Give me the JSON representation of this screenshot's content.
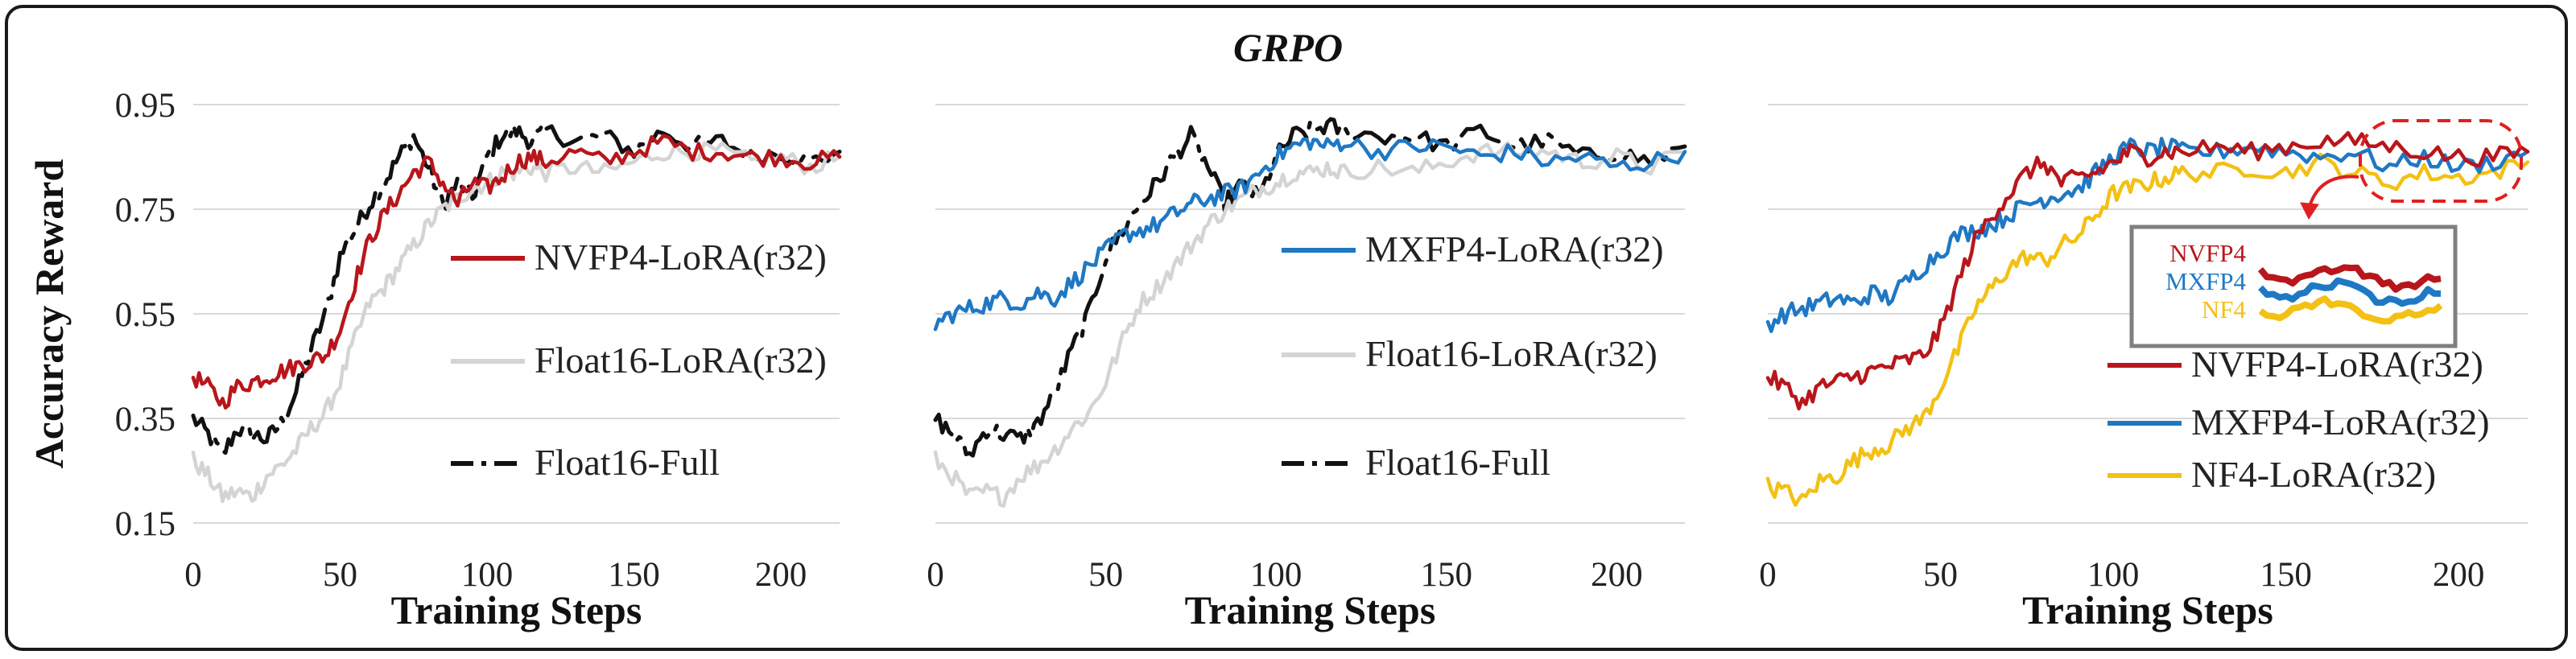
{
  "title": "GRPO",
  "colors": {
    "nvfp4": "#b8161c",
    "mxfp4": "#1f78c4",
    "float16_lora": "#d4d4d4",
    "float16_full": "#111111",
    "nf4": "#f3c014",
    "inset_border": "#7f7f7f",
    "callout": "#e02020"
  },
  "chart_data": [
    {
      "type": "line",
      "xlabel": "Training Steps",
      "ylabel": "Accuracy Reward",
      "xlim": [
        0,
        220
      ],
      "ylim": [
        0.15,
        0.95
      ],
      "xticks": [
        "0",
        "50",
        "100",
        "150",
        "200"
      ],
      "yticks": [
        "0.15",
        "0.35",
        "0.55",
        "0.75",
        "0.95"
      ],
      "grid": true,
      "legend": [
        {
          "label": "NVFP4-LoRA(r32)",
          "key": "nvfp4",
          "style": "solid"
        },
        {
          "label": "Float16-LoRA(r32)",
          "key": "float16_lora",
          "style": "solid"
        },
        {
          "label": "Float16-Full",
          "key": "float16_full",
          "style": "dashdot"
        }
      ],
      "series": [
        {
          "name": "Float16-Full",
          "key": "float16_full",
          "style": "dashdot",
          "x": [
            0,
            5,
            10,
            15,
            20,
            25,
            30,
            35,
            40,
            45,
            50,
            55,
            60,
            65,
            70,
            75,
            80,
            85,
            90,
            95,
            100,
            105,
            110,
            115,
            120,
            130,
            140,
            150,
            160,
            170,
            180,
            190,
            200,
            210,
            220
          ],
          "y": [
            0.35,
            0.32,
            0.28,
            0.33,
            0.32,
            0.31,
            0.34,
            0.4,
            0.48,
            0.55,
            0.66,
            0.71,
            0.76,
            0.8,
            0.85,
            0.89,
            0.83,
            0.76,
            0.8,
            0.77,
            0.85,
            0.89,
            0.9,
            0.88,
            0.9,
            0.88,
            0.89,
            0.86,
            0.9,
            0.87,
            0.88,
            0.85,
            0.86,
            0.84,
            0.86
          ]
        },
        {
          "name": "Float16-LoRA(r32)",
          "key": "float16_lora",
          "style": "solid",
          "x": [
            0,
            5,
            10,
            15,
            20,
            25,
            30,
            35,
            40,
            45,
            50,
            55,
            60,
            65,
            70,
            75,
            80,
            85,
            90,
            95,
            100,
            105,
            110,
            115,
            120,
            130,
            140,
            150,
            160,
            170,
            180,
            190,
            200,
            210,
            220
          ],
          "y": [
            0.27,
            0.24,
            0.2,
            0.21,
            0.2,
            0.24,
            0.26,
            0.29,
            0.33,
            0.36,
            0.42,
            0.5,
            0.57,
            0.6,
            0.64,
            0.68,
            0.72,
            0.75,
            0.77,
            0.79,
            0.8,
            0.82,
            0.82,
            0.83,
            0.82,
            0.83,
            0.82,
            0.84,
            0.86,
            0.86,
            0.86,
            0.84,
            0.85,
            0.83,
            0.85
          ]
        },
        {
          "name": "NVFP4-LoRA(r32)",
          "key": "nvfp4",
          "style": "solid",
          "x": [
            0,
            5,
            10,
            15,
            20,
            25,
            30,
            35,
            40,
            45,
            50,
            55,
            60,
            65,
            70,
            75,
            80,
            85,
            90,
            95,
            100,
            105,
            110,
            115,
            120,
            130,
            140,
            150,
            160,
            170,
            180,
            190,
            200,
            210,
            220
          ],
          "y": [
            0.43,
            0.41,
            0.38,
            0.41,
            0.42,
            0.43,
            0.44,
            0.45,
            0.46,
            0.47,
            0.52,
            0.61,
            0.69,
            0.74,
            0.78,
            0.82,
            0.84,
            0.8,
            0.76,
            0.8,
            0.79,
            0.81,
            0.84,
            0.85,
            0.84,
            0.86,
            0.84,
            0.86,
            0.88,
            0.86,
            0.86,
            0.85,
            0.85,
            0.84,
            0.85
          ]
        }
      ]
    },
    {
      "type": "line",
      "xlabel": "Training Steps",
      "ylabel": "",
      "xlim": [
        0,
        220
      ],
      "ylim": [
        0.15,
        0.95
      ],
      "xticks": [
        "0",
        "50",
        "100",
        "150",
        "200"
      ],
      "grid": true,
      "legend": [
        {
          "label": "MXFP4-LoRA(r32)",
          "key": "mxfp4",
          "style": "solid"
        },
        {
          "label": "Float16-LoRA(r32)",
          "key": "float16_lora",
          "style": "solid"
        },
        {
          "label": "Float16-Full",
          "key": "float16_full",
          "style": "dashdot"
        }
      ],
      "series": [
        {
          "name": "Float16-Full",
          "key": "float16_full",
          "style": "dashdot",
          "x": [
            0,
            5,
            10,
            15,
            20,
            25,
            30,
            35,
            40,
            45,
            50,
            55,
            60,
            65,
            70,
            75,
            80,
            85,
            90,
            95,
            100,
            105,
            110,
            115,
            120,
            130,
            140,
            150,
            160,
            170,
            180,
            190,
            200,
            210,
            220
          ],
          "y": [
            0.35,
            0.32,
            0.28,
            0.33,
            0.32,
            0.31,
            0.34,
            0.4,
            0.48,
            0.55,
            0.66,
            0.71,
            0.76,
            0.8,
            0.85,
            0.89,
            0.83,
            0.76,
            0.8,
            0.77,
            0.85,
            0.89,
            0.9,
            0.91,
            0.9,
            0.89,
            0.89,
            0.87,
            0.9,
            0.87,
            0.88,
            0.85,
            0.86,
            0.84,
            0.87
          ]
        },
        {
          "name": "Float16-LoRA(r32)",
          "key": "float16_lora",
          "style": "solid",
          "x": [
            0,
            5,
            10,
            15,
            20,
            25,
            30,
            35,
            40,
            45,
            50,
            55,
            60,
            65,
            70,
            75,
            80,
            85,
            90,
            95,
            100,
            105,
            110,
            115,
            120,
            130,
            140,
            150,
            160,
            170,
            180,
            190,
            200,
            210,
            220
          ],
          "y": [
            0.27,
            0.24,
            0.2,
            0.21,
            0.2,
            0.24,
            0.26,
            0.29,
            0.33,
            0.36,
            0.42,
            0.5,
            0.57,
            0.6,
            0.64,
            0.68,
            0.72,
            0.75,
            0.77,
            0.79,
            0.8,
            0.82,
            0.82,
            0.83,
            0.82,
            0.83,
            0.82,
            0.84,
            0.86,
            0.86,
            0.86,
            0.84,
            0.85,
            0.83,
            0.86
          ]
        },
        {
          "name": "MXFP4-LoRA(r32)",
          "key": "mxfp4",
          "style": "solid",
          "x": [
            0,
            5,
            10,
            15,
            20,
            25,
            30,
            35,
            40,
            45,
            50,
            55,
            60,
            65,
            70,
            75,
            80,
            85,
            90,
            95,
            100,
            105,
            110,
            115,
            120,
            130,
            140,
            150,
            160,
            170,
            180,
            190,
            200,
            210,
            220
          ],
          "y": [
            0.53,
            0.55,
            0.56,
            0.57,
            0.58,
            0.57,
            0.59,
            0.58,
            0.61,
            0.64,
            0.67,
            0.7,
            0.71,
            0.72,
            0.74,
            0.76,
            0.77,
            0.78,
            0.79,
            0.82,
            0.85,
            0.87,
            0.88,
            0.87,
            0.88,
            0.86,
            0.87,
            0.87,
            0.85,
            0.86,
            0.84,
            0.85,
            0.83,
            0.84,
            0.86
          ]
        }
      ]
    },
    {
      "type": "line",
      "xlabel": "Training Steps",
      "ylabel": "",
      "xlim": [
        0,
        220
      ],
      "ylim": [
        0.15,
        0.95
      ],
      "xticks": [
        "0",
        "50",
        "100",
        "150",
        "200"
      ],
      "grid": true,
      "legend": [
        {
          "label": "NVFP4-LoRA(r32)",
          "key": "nvfp4",
          "style": "solid"
        },
        {
          "label": "MXFP4-LoRA(r32)",
          "key": "mxfp4",
          "style": "solid"
        },
        {
          "label": "NF4-LoRA(r32)",
          "key": "nf4",
          "style": "solid"
        }
      ],
      "inset_labels": [
        "NVFP4",
        "MXFP4",
        "NF4"
      ],
      "series": [
        {
          "name": "NF4-LoRA(r32)",
          "key": "nf4",
          "style": "solid",
          "x": [
            0,
            5,
            10,
            15,
            20,
            25,
            30,
            35,
            40,
            45,
            50,
            55,
            60,
            65,
            70,
            75,
            80,
            85,
            90,
            95,
            100,
            105,
            110,
            115,
            120,
            130,
            140,
            150,
            160,
            170,
            180,
            190,
            200,
            210,
            220
          ],
          "y": [
            0.22,
            0.21,
            0.19,
            0.23,
            0.24,
            0.27,
            0.29,
            0.3,
            0.33,
            0.35,
            0.41,
            0.48,
            0.56,
            0.6,
            0.64,
            0.66,
            0.65,
            0.68,
            0.7,
            0.74,
            0.78,
            0.79,
            0.8,
            0.81,
            0.82,
            0.82,
            0.83,
            0.82,
            0.84,
            0.82,
            0.8,
            0.82,
            0.81,
            0.82,
            0.84
          ]
        },
        {
          "name": "MXFP4-LoRA(r32)",
          "key": "mxfp4",
          "style": "solid",
          "x": [
            0,
            5,
            10,
            15,
            20,
            25,
            30,
            35,
            40,
            45,
            50,
            55,
            60,
            65,
            70,
            75,
            80,
            85,
            90,
            95,
            100,
            105,
            110,
            115,
            120,
            130,
            140,
            150,
            160,
            170,
            180,
            190,
            200,
            210,
            220
          ],
          "y": [
            0.53,
            0.55,
            0.56,
            0.57,
            0.58,
            0.57,
            0.59,
            0.58,
            0.61,
            0.64,
            0.67,
            0.7,
            0.71,
            0.72,
            0.74,
            0.76,
            0.77,
            0.78,
            0.79,
            0.82,
            0.85,
            0.87,
            0.86,
            0.87,
            0.86,
            0.86,
            0.87,
            0.86,
            0.85,
            0.86,
            0.83,
            0.85,
            0.83,
            0.84,
            0.86
          ]
        },
        {
          "name": "NVFP4-LoRA(r32)",
          "key": "nvfp4",
          "style": "solid",
          "x": [
            0,
            5,
            10,
            15,
            20,
            25,
            30,
            35,
            40,
            45,
            50,
            55,
            60,
            65,
            70,
            75,
            80,
            85,
            90,
            95,
            100,
            105,
            110,
            115,
            120,
            130,
            140,
            150,
            160,
            170,
            180,
            190,
            200,
            210,
            220
          ],
          "y": [
            0.43,
            0.41,
            0.38,
            0.41,
            0.42,
            0.43,
            0.44,
            0.45,
            0.46,
            0.47,
            0.52,
            0.61,
            0.69,
            0.74,
            0.78,
            0.82,
            0.84,
            0.8,
            0.81,
            0.82,
            0.84,
            0.86,
            0.85,
            0.86,
            0.86,
            0.87,
            0.86,
            0.87,
            0.88,
            0.88,
            0.87,
            0.86,
            0.85,
            0.85,
            0.86
          ]
        }
      ]
    }
  ]
}
